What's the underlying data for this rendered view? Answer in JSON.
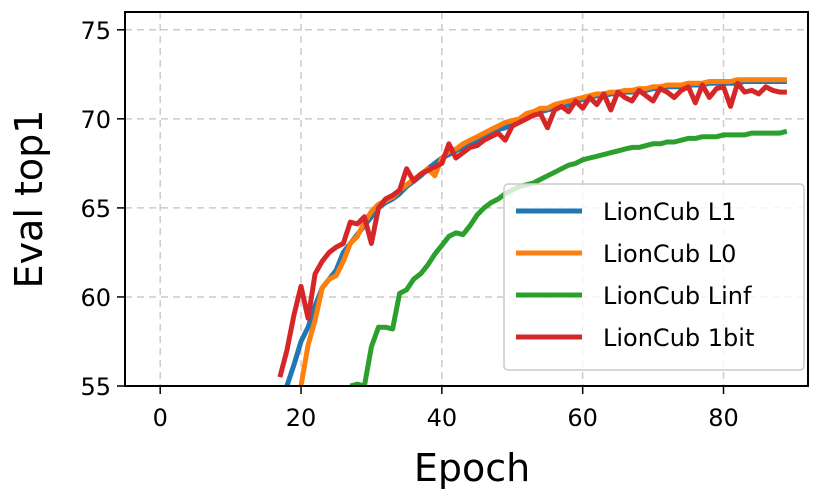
{
  "chart_data": {
    "type": "line",
    "title": "",
    "xlabel": "Epoch",
    "ylabel": "Eval top1",
    "xlim": [
      -5,
      92
    ],
    "ylim": [
      55,
      76
    ],
    "xticks": [
      0,
      20,
      40,
      60,
      80
    ],
    "yticks": [
      55,
      60,
      65,
      70,
      75
    ],
    "grid": true,
    "grid_style": "dashed",
    "legend_position": "lower right",
    "series": [
      {
        "name": "LionCub L1",
        "color": "#1f77b4",
        "x": [
          18,
          19,
          20,
          21,
          22,
          23,
          24,
          25,
          26,
          27,
          28,
          29,
          30,
          31,
          32,
          33,
          34,
          35,
          36,
          37,
          38,
          39,
          40,
          41,
          42,
          43,
          44,
          45,
          46,
          47,
          48,
          49,
          50,
          51,
          52,
          53,
          54,
          55,
          56,
          57,
          58,
          59,
          60,
          61,
          62,
          63,
          64,
          65,
          66,
          67,
          68,
          69,
          70,
          71,
          72,
          73,
          74,
          75,
          76,
          77,
          78,
          79,
          80,
          81,
          82,
          83,
          84,
          85,
          86,
          87,
          88,
          89
        ],
        "y": [
          55.0,
          56.2,
          57.5,
          58.3,
          59.5,
          60.5,
          61.0,
          61.5,
          62.5,
          63.0,
          63.5,
          64.0,
          64.5,
          65.0,
          65.3,
          65.5,
          65.8,
          66.2,
          66.5,
          66.8,
          67.2,
          67.5,
          67.8,
          68.0,
          68.2,
          68.4,
          68.6,
          68.8,
          69.0,
          69.2,
          69.4,
          69.5,
          69.7,
          69.9,
          70.1,
          70.2,
          70.4,
          70.5,
          70.6,
          70.7,
          70.8,
          71.0,
          71.1,
          71.2,
          71.3,
          71.3,
          71.4,
          71.4,
          71.5,
          71.5,
          71.6,
          71.6,
          71.7,
          71.7,
          71.8,
          71.8,
          71.8,
          71.9,
          71.9,
          71.9,
          72.0,
          72.0,
          72.0,
          72.0,
          72.0,
          72.1,
          72.1,
          72.1,
          72.1,
          72.1,
          72.1,
          72.1
        ]
      },
      {
        "name": "LionCub L0",
        "color": "#ff7f0e",
        "x": [
          20,
          21,
          22,
          23,
          24,
          25,
          26,
          27,
          28,
          29,
          30,
          31,
          32,
          33,
          34,
          35,
          36,
          37,
          38,
          39,
          40,
          41,
          42,
          43,
          44,
          45,
          46,
          47,
          48,
          49,
          50,
          51,
          52,
          53,
          54,
          55,
          56,
          57,
          58,
          59,
          60,
          61,
          62,
          63,
          64,
          65,
          66,
          67,
          68,
          69,
          70,
          71,
          72,
          73,
          74,
          75,
          76,
          77,
          78,
          79,
          80,
          81,
          82,
          83,
          84,
          85,
          86,
          87,
          88,
          89
        ],
        "y": [
          55.0,
          57.3,
          58.7,
          60.5,
          61.0,
          61.2,
          62.0,
          63.0,
          63.4,
          64.2,
          64.8,
          65.2,
          65.4,
          65.6,
          66.0,
          66.3,
          66.6,
          66.9,
          67.2,
          66.8,
          67.8,
          68.2,
          68.3,
          68.6,
          68.8,
          69.0,
          69.2,
          69.4,
          69.6,
          69.8,
          69.9,
          70.0,
          70.3,
          70.4,
          70.6,
          70.6,
          70.8,
          70.9,
          71.0,
          71.1,
          71.2,
          71.3,
          71.4,
          71.4,
          71.5,
          71.5,
          71.6,
          71.6,
          71.7,
          71.7,
          71.8,
          71.8,
          71.9,
          71.9,
          71.9,
          72.0,
          72.0,
          72.0,
          72.1,
          72.1,
          72.1,
          72.1,
          72.2,
          72.2,
          72.2,
          72.2,
          72.2,
          72.2,
          72.2,
          72.2
        ]
      },
      {
        "name": "LionCub Linf",
        "color": "#2ca02c",
        "x": [
          27,
          28,
          29,
          30,
          31,
          32,
          33,
          34,
          35,
          36,
          37,
          38,
          39,
          40,
          41,
          42,
          43,
          44,
          45,
          46,
          47,
          48,
          49,
          50,
          51,
          52,
          53,
          54,
          55,
          56,
          57,
          58,
          59,
          60,
          61,
          62,
          63,
          64,
          65,
          66,
          67,
          68,
          69,
          70,
          71,
          72,
          73,
          74,
          75,
          76,
          77,
          78,
          79,
          80,
          81,
          82,
          83,
          84,
          85,
          86,
          87,
          88,
          89
        ],
        "y": [
          55.0,
          55.1,
          55.0,
          57.2,
          58.3,
          58.3,
          58.2,
          60.2,
          60.4,
          61.0,
          61.3,
          61.8,
          62.4,
          62.9,
          63.4,
          63.6,
          63.5,
          64.0,
          64.6,
          65.0,
          65.3,
          65.5,
          65.8,
          66.0,
          66.2,
          66.3,
          66.4,
          66.6,
          66.8,
          67.0,
          67.2,
          67.4,
          67.5,
          67.7,
          67.8,
          67.9,
          68.0,
          68.1,
          68.2,
          68.3,
          68.4,
          68.4,
          68.5,
          68.6,
          68.6,
          68.7,
          68.7,
          68.8,
          68.9,
          68.9,
          69.0,
          69.0,
          69.0,
          69.1,
          69.1,
          69.1,
          69.1,
          69.2,
          69.2,
          69.2,
          69.2,
          69.2,
          69.3
        ]
      },
      {
        "name": "LionCub 1bit",
        "color": "#d62728",
        "x": [
          17,
          18,
          19,
          20,
          21,
          22,
          23,
          24,
          25,
          26,
          27,
          28,
          29,
          30,
          31,
          32,
          33,
          34,
          35,
          36,
          37,
          38,
          39,
          40,
          41,
          42,
          43,
          44,
          45,
          46,
          47,
          48,
          49,
          50,
          51,
          52,
          53,
          54,
          55,
          56,
          57,
          58,
          59,
          60,
          61,
          62,
          63,
          64,
          65,
          66,
          67,
          68,
          69,
          70,
          71,
          72,
          73,
          74,
          75,
          76,
          77,
          78,
          79,
          80,
          81,
          82,
          83,
          84,
          85,
          86,
          87,
          88,
          89
        ],
        "y": [
          55.5,
          57.0,
          59.0,
          60.6,
          58.8,
          61.3,
          62.0,
          62.5,
          62.8,
          63.0,
          64.2,
          64.1,
          64.5,
          63.0,
          65.0,
          65.5,
          65.7,
          66.0,
          67.2,
          66.5,
          66.9,
          67.1,
          67.3,
          67.5,
          68.6,
          67.8,
          68.1,
          68.4,
          68.5,
          68.8,
          69.0,
          69.2,
          68.8,
          69.6,
          69.8,
          70.0,
          70.2,
          70.3,
          69.5,
          70.5,
          70.7,
          70.4,
          71.0,
          70.6,
          71.2,
          70.8,
          71.4,
          70.5,
          71.5,
          71.2,
          71.0,
          71.6,
          71.3,
          71.0,
          71.7,
          71.5,
          71.2,
          71.6,
          71.8,
          70.9,
          71.9,
          71.2,
          71.7,
          71.8,
          70.7,
          72.0,
          71.5,
          71.6,
          71.4,
          71.8,
          71.6,
          71.5,
          71.5
        ]
      }
    ]
  }
}
